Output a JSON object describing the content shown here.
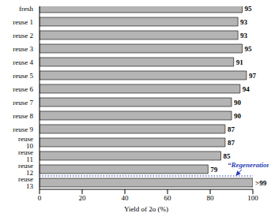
{
  "chart_data": {
    "type": "bar",
    "orientation": "horizontal",
    "categories": [
      "fresh",
      "reuse 1",
      "reuse 2",
      "reuse 3",
      "reuse 4",
      "reuse 5",
      "reuse 6",
      "reuse 7",
      "reuse 8",
      "reuse 9",
      "reuse 10",
      "reuse 11",
      "reuse 12",
      "reuse 13"
    ],
    "values": [
      95,
      93,
      93,
      95,
      91,
      97,
      94,
      90,
      90,
      87,
      87,
      85,
      79,
      100
    ],
    "value_labels": [
      "95",
      "93",
      "93",
      "95",
      "91",
      "97",
      "94",
      "90",
      "90",
      "87",
      "87",
      "85",
      "79",
      ">99"
    ],
    "color": "#b4b4b4",
    "xlabel": "Yield of 2o (%)",
    "xlim": [
      0,
      100
    ],
    "xticks": [
      0,
      20,
      40,
      60,
      80,
      100
    ],
    "grid": false,
    "data_labels": true,
    "annotation": "“Regeneration”"
  }
}
